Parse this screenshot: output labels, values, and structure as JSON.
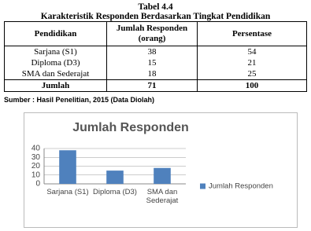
{
  "caption": {
    "number": "Tabel 4.4",
    "title": "Karakteristik Responden Berdasarkan Tingkat Pendidikan"
  },
  "table": {
    "header": [
      "Pendidikan",
      "Jumlah Responden (orang)",
      "Persentase"
    ],
    "rows": [
      [
        "Sarjana (S1)",
        38,
        54
      ],
      [
        "Diploma (D3)",
        15,
        21
      ],
      [
        "SMA dan Sederajat",
        18,
        25
      ]
    ],
    "total": [
      "Jumlah",
      71,
      100
    ]
  },
  "source": "Sumber : Hasil Penelitian, 2015 (Data Diolah)",
  "chart_data": {
    "type": "bar",
    "title": "Jumlah Responden",
    "categories": [
      "Sarjana (S1)",
      "Diploma (D3)",
      "SMA dan Sederajat"
    ],
    "series": [
      {
        "name": "Jumlah Responden",
        "color": "#4f81bd",
        "values": [
          38,
          15,
          18
        ]
      }
    ],
    "ylim": [
      0,
      40
    ],
    "yticks": [
      0,
      10,
      20,
      30,
      40
    ],
    "grid": true,
    "legend": "right"
  }
}
